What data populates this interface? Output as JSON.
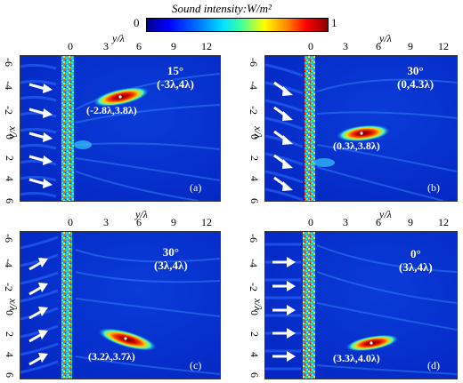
{
  "colorbar": {
    "title": "Sound intensity:W/m²",
    "min_label": "0",
    "max_label": "1",
    "colors": [
      "#00008b",
      "#0000ff",
      "#00bfff",
      "#00ffb0",
      "#ffff00",
      "#ff7f00",
      "#ff0000",
      "#8b0000"
    ]
  },
  "axes": {
    "y_label": "y/λ",
    "x_label": "x/λ",
    "y_ticks": [
      "0",
      "3",
      "6",
      "9",
      "12"
    ],
    "x_ticks": [
      "-6",
      "-4",
      "-2",
      "0",
      "2",
      "4",
      "6"
    ]
  },
  "panels": [
    {
      "label": "(a)",
      "angle": "15°",
      "target": "(-3λ,4λ)",
      "focus": "(-2.8λ,3.8λ)"
    },
    {
      "label": "(b)",
      "angle": "30°",
      "target": "(0,4.3λ)",
      "focus": "(0.3λ,3.8λ)"
    },
    {
      "label": "(c)",
      "angle": "30°",
      "target": "(3λ,4λ)",
      "focus": "(3.2λ,3.7λ)"
    },
    {
      "label": "(d)",
      "angle": "0°",
      "target": "(3λ,4λ)",
      "focus": "(3.3λ,4.0λ)"
    }
  ]
}
